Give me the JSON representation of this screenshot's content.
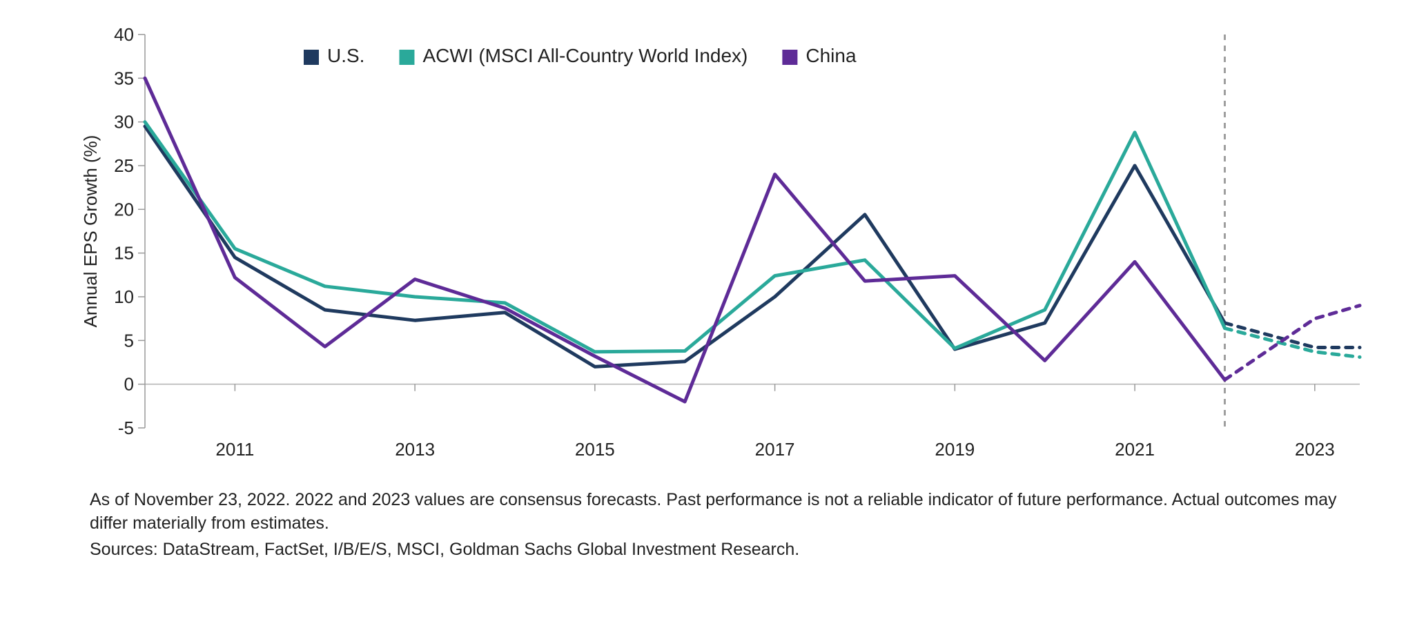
{
  "chart": {
    "type": "line",
    "ylabel": "Annual EPS Growth (%)",
    "label_fontsize": 26,
    "label_color": "#222222",
    "background_color": "#ffffff",
    "axis_color": "#999999",
    "zero_line_color": "#b0b0b0",
    "tick_color": "#222222",
    "tick_fontsize": 26,
    "legend_fontsize": 28,
    "legend_swatch_size": 22,
    "line_width": 5,
    "dash_pattern": "10,10",
    "forecast_divider": {
      "x": 2022,
      "color": "#9e9e9e",
      "width": 3,
      "dash": "8,8"
    },
    "x": {
      "min": 2010,
      "max": 2023.5,
      "tick_start": 2011,
      "tick_step": 2,
      "tick_end": 2023
    },
    "y": {
      "min": -5,
      "max": 40,
      "tick_start": -5,
      "tick_step": 5,
      "tick_end": 40
    },
    "series": [
      {
        "id": "us",
        "label": "U.S.",
        "color": "#1f3a5f",
        "solid": [
          [
            2010,
            29.5
          ],
          [
            2011,
            14.5
          ],
          [
            2012,
            8.5
          ],
          [
            2013,
            7.3
          ],
          [
            2014,
            8.2
          ],
          [
            2015,
            2.0
          ],
          [
            2016,
            2.6
          ],
          [
            2017,
            10.0
          ],
          [
            2018,
            19.4
          ],
          [
            2019,
            4.0
          ],
          [
            2020,
            7.0
          ],
          [
            2021,
            25.0
          ],
          [
            2022,
            7.0
          ]
        ],
        "dashed": [
          [
            2022,
            7.0
          ],
          [
            2023,
            4.2
          ],
          [
            2023.5,
            4.2
          ]
        ]
      },
      {
        "id": "acwi",
        "label": "ACWI (MSCI All-Country World Index)",
        "color": "#2aa99a",
        "solid": [
          [
            2010,
            30.0
          ],
          [
            2011,
            15.5
          ],
          [
            2012,
            11.2
          ],
          [
            2013,
            10.0
          ],
          [
            2014,
            9.3
          ],
          [
            2015,
            3.7
          ],
          [
            2016,
            3.8
          ],
          [
            2017,
            12.4
          ],
          [
            2018,
            14.2
          ],
          [
            2019,
            4.1
          ],
          [
            2020,
            8.5
          ],
          [
            2021,
            28.8
          ],
          [
            2022,
            6.4
          ]
        ],
        "dashed": [
          [
            2022,
            6.4
          ],
          [
            2023,
            3.7
          ],
          [
            2023.5,
            3.1
          ]
        ]
      },
      {
        "id": "china",
        "label": "China",
        "color": "#5e2b97",
        "solid": [
          [
            2010,
            35.0
          ],
          [
            2011,
            12.2
          ],
          [
            2012,
            4.3
          ],
          [
            2013,
            12.0
          ],
          [
            2014,
            8.7
          ],
          [
            2015,
            3.2
          ],
          [
            2016,
            -2.0
          ],
          [
            2017,
            24.0
          ],
          [
            2018,
            11.8
          ],
          [
            2019,
            12.4
          ],
          [
            2020,
            2.7
          ],
          [
            2021,
            14.0
          ],
          [
            2022,
            0.5
          ]
        ],
        "dashed": [
          [
            2022,
            0.5
          ],
          [
            2023,
            7.5
          ],
          [
            2023.5,
            9.0
          ]
        ]
      }
    ],
    "legend_order": [
      "us",
      "acwi",
      "china"
    ]
  },
  "footnote": {
    "line1": "As of November 23, 2022. 2022 and 2023 values are consensus forecasts. Past performance is not a reliable indicator of future performance. Actual outcomes may differ materially from estimates.",
    "line2": "Sources: DataStream, FactSet, I/B/E/S, MSCI, Goldman Sachs Global Investment Research.",
    "fontsize": 25,
    "color": "#222222"
  }
}
